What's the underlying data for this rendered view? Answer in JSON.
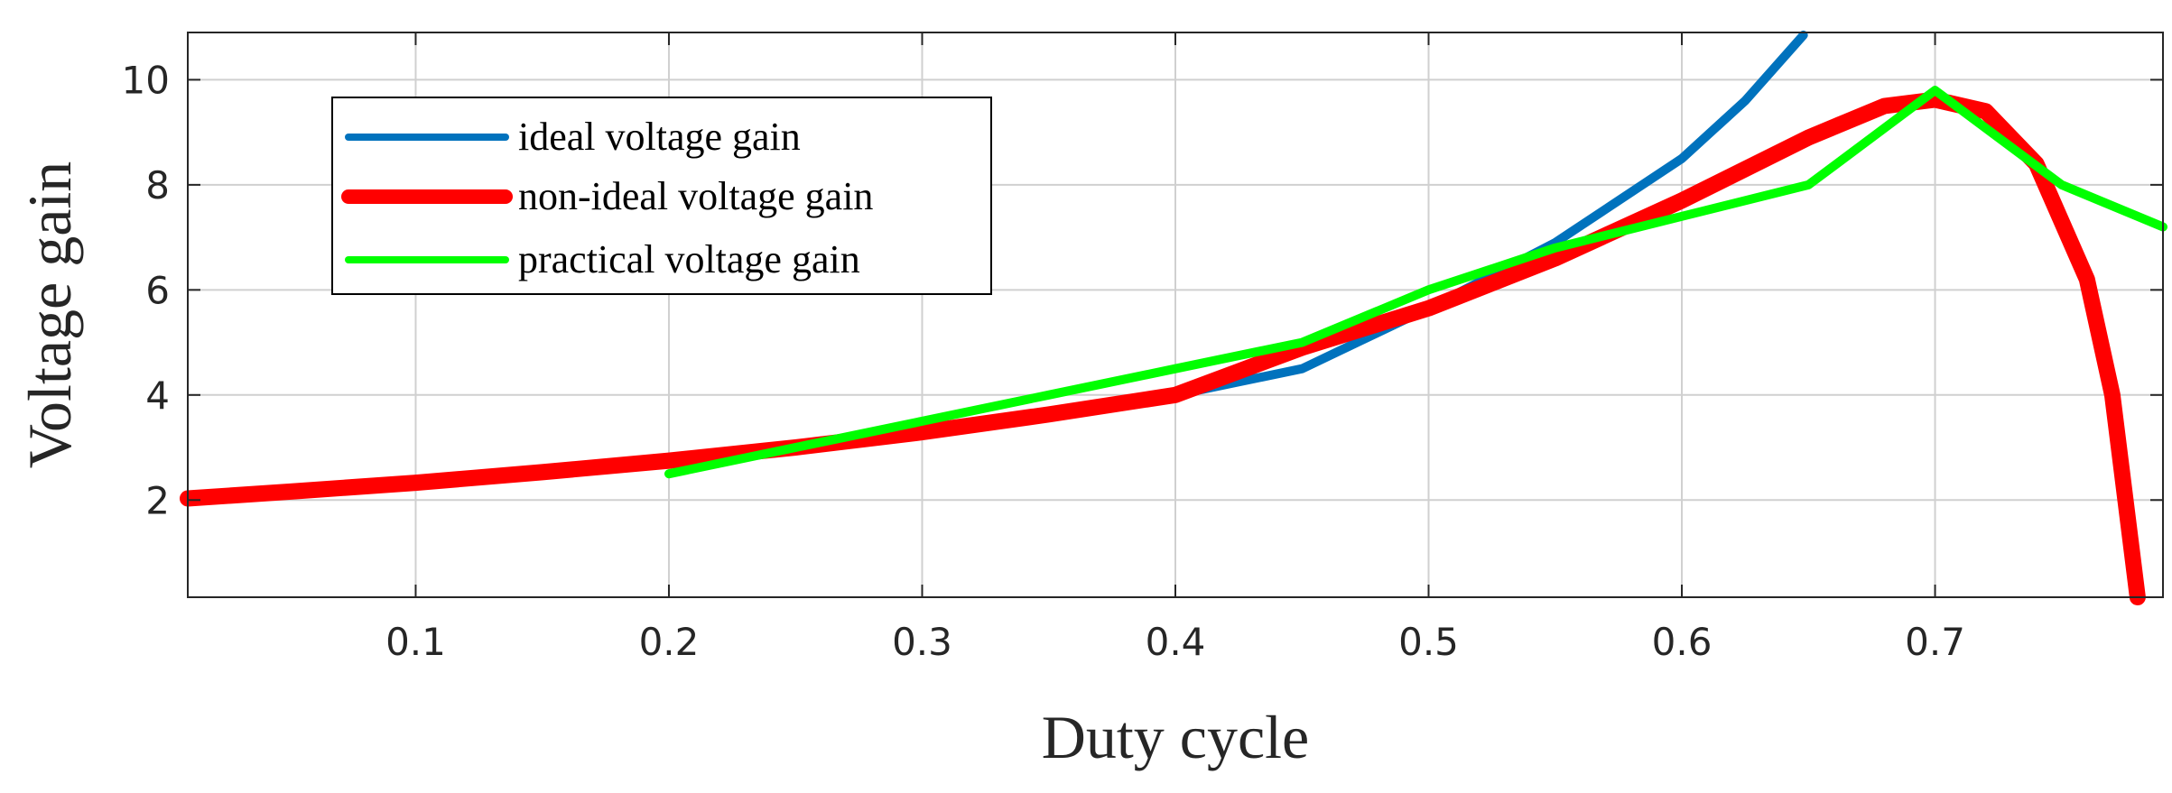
{
  "chart_data": {
    "type": "line",
    "title": "",
    "xlabel": "Duty cycle",
    "ylabel": "Voltage gain",
    "xlim": [
      0.01,
      0.79
    ],
    "ylim": [
      0.15,
      10.9
    ],
    "xticks": [
      0.1,
      0.2,
      0.3,
      0.4,
      0.5,
      0.6,
      0.7
    ],
    "xtick_labels": [
      "0.1",
      "0.2",
      "0.3",
      "0.4",
      "0.5",
      "0.6",
      "0.7"
    ],
    "yticks": [
      2,
      4,
      6,
      8,
      10
    ],
    "ytick_labels": [
      "2",
      "4",
      "6",
      "8",
      "10"
    ],
    "grid": true,
    "legend_position": "top-left",
    "series": [
      {
        "name": "ideal voltage gain",
        "color": "#0072BD",
        "x": [
          0.01,
          0.05,
          0.1,
          0.15,
          0.2,
          0.25,
          0.3,
          0.35,
          0.4,
          0.45,
          0.5,
          0.55,
          0.6,
          0.625,
          0.648
        ],
        "y": [
          2.03,
          2.16,
          2.33,
          2.53,
          2.75,
          3.0,
          3.29,
          3.63,
          4.0,
          4.5,
          5.65,
          6.9,
          8.5,
          9.6,
          10.85
        ]
      },
      {
        "name": "non-ideal voltage gain",
        "color": "#FF0000",
        "x": [
          0.01,
          0.05,
          0.1,
          0.15,
          0.2,
          0.25,
          0.3,
          0.35,
          0.4,
          0.45,
          0.5,
          0.55,
          0.6,
          0.65,
          0.68,
          0.7,
          0.72,
          0.74,
          0.76,
          0.77,
          0.78
        ],
        "y": [
          2.03,
          2.16,
          2.33,
          2.53,
          2.75,
          3.0,
          3.29,
          3.63,
          4.0,
          4.9,
          5.65,
          6.6,
          7.7,
          8.9,
          9.5,
          9.62,
          9.4,
          8.4,
          6.2,
          4.0,
          0.15
        ]
      },
      {
        "name": "practical voltage gain",
        "color": "#00FF00",
        "x": [
          0.2,
          0.25,
          0.3,
          0.35,
          0.4,
          0.45,
          0.5,
          0.55,
          0.6,
          0.65,
          0.7,
          0.75,
          0.79
        ],
        "y": [
          2.5,
          3.0,
          3.5,
          4.0,
          4.5,
          5.0,
          6.0,
          6.8,
          7.4,
          8.0,
          9.8,
          8.0,
          7.2
        ]
      }
    ]
  },
  "colors": {
    "axis": "#262626",
    "grid": "#d0d0d0",
    "background": "#ffffff"
  }
}
